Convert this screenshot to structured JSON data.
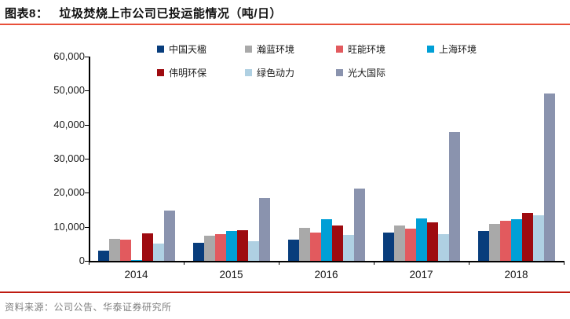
{
  "header": {
    "figure_label": "图表8：",
    "title": "垃圾焚烧上市公司已投运能情况（吨/日）"
  },
  "footer": {
    "source": "资料来源：公司公告、华泰证券研究所"
  },
  "colors": {
    "top_rule": "#E8503A",
    "bottom_rule": "#BE1B10",
    "axis": "#000000",
    "source_text": "#7F7F7F"
  },
  "chart_data": {
    "type": "bar",
    "title": "垃圾焚烧上市公司已投运能情况（吨/日）",
    "categories": [
      "2014",
      "2015",
      "2016",
      "2017",
      "2018"
    ],
    "series": [
      {
        "name": "中国天楹",
        "color": "#083D7C",
        "values": [
          3000,
          5400,
          6300,
          8400,
          8800
        ]
      },
      {
        "name": "瀚蓝环境",
        "color": "#A9A9A9",
        "values": [
          6500,
          7300,
          9700,
          10400,
          10900
        ]
      },
      {
        "name": "旺能环境",
        "color": "#E25A5E",
        "values": [
          6200,
          7900,
          8300,
          9400,
          11800
        ]
      },
      {
        "name": "上海环境",
        "color": "#009FD6",
        "values": [
          300,
          8700,
          12200,
          12400,
          12300
        ]
      },
      {
        "name": "伟明环保",
        "color": "#9E0B10",
        "values": [
          8000,
          9100,
          10300,
          11400,
          14000
        ]
      },
      {
        "name": "绿色动力",
        "color": "#AFD0E2",
        "values": [
          5100,
          5700,
          7600,
          7800,
          13500
        ]
      },
      {
        "name": "光大国际",
        "color": "#8A93AE",
        "values": [
          14700,
          18500,
          21300,
          37900,
          49200
        ]
      }
    ],
    "ylim": [
      0,
      60000
    ],
    "y_tick_step": 10000,
    "y_ticks": [
      "0",
      "10,000",
      "20,000",
      "30,000",
      "40,000",
      "50,000",
      "60,000"
    ],
    "grid": false,
    "legend_position": "top"
  }
}
